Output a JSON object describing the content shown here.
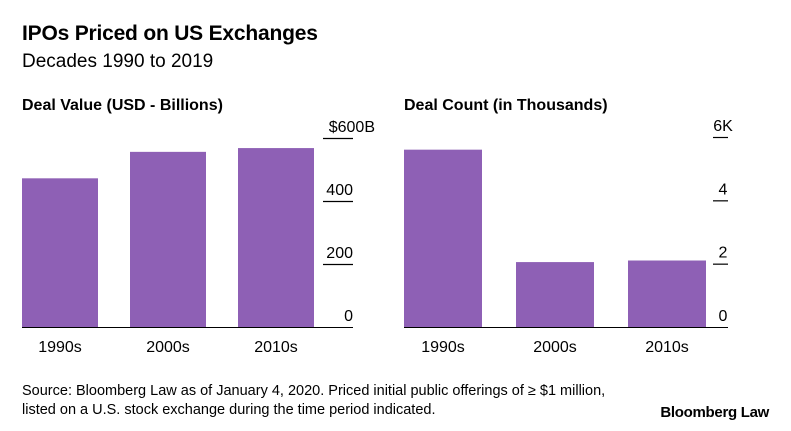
{
  "title": "IPOs Priced on US Exchanges",
  "subtitle": "Decades 1990 to 2019",
  "source": "Source: Bloomberg Law as of January 4, 2020. Priced initial public offerings of ≥ $1 million, listed on a U.S. stock exchange during the time period indicated.",
  "brand": "Bloomberg Law",
  "colors": {
    "bar": "#8E60B5",
    "axis": "#000000"
  },
  "chart_data": [
    {
      "type": "bar",
      "title": "Deal Value (USD - Billions)",
      "categories": [
        "1990s",
        "2000s",
        "2010s"
      ],
      "values": [
        472,
        556,
        568
      ],
      "ylim": [
        0,
        600
      ],
      "yticks": [
        0,
        200,
        400,
        600
      ],
      "ytick_labels": [
        "0",
        "200",
        "400",
        "$600B"
      ]
    },
    {
      "type": "bar",
      "title": "Deal Count (in Thousands)",
      "categories": [
        "1990s",
        "2000s",
        "2010s"
      ],
      "values": [
        5.6,
        2.05,
        2.1
      ],
      "ylim": [
        0,
        6
      ],
      "yticks": [
        0,
        2,
        4,
        6
      ],
      "ytick_labels": [
        "0",
        "2",
        "4",
        "6K"
      ]
    }
  ]
}
